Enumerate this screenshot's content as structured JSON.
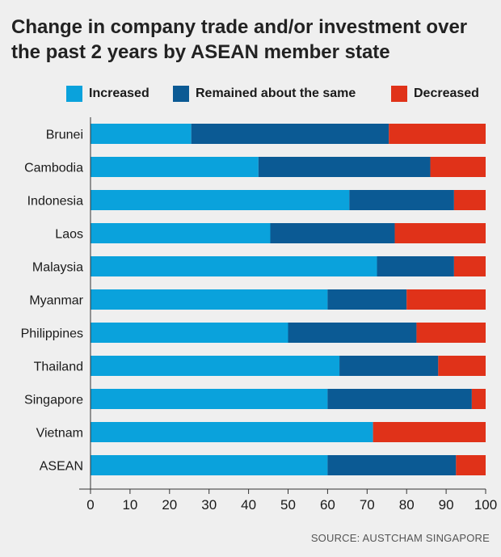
{
  "title": "Change in company trade and/or investment over the past 2 years by ASEAN member state",
  "source": "SOURCE: AUSTCHAM SINGAPORE",
  "chart_data": {
    "type": "bar",
    "orientation": "horizontal",
    "stacked": true,
    "categories": [
      "Brunei",
      "Cambodia",
      "Indonesia",
      "Laos",
      "Malaysia",
      "Myanmar",
      "Philippines",
      "Thailand",
      "Singapore",
      "Vietnam",
      "ASEAN"
    ],
    "series": [
      {
        "name": "Increased",
        "color": "#0aa2dc",
        "values": [
          25.5,
          42.5,
          65.5,
          45.5,
          72.5,
          60,
          50,
          63,
          60,
          71.5,
          60
        ]
      },
      {
        "name": "Remained about the same",
        "color": "#0b5a94",
        "values": [
          50,
          43.5,
          26.5,
          31.5,
          19.5,
          20,
          32.5,
          25,
          36.5,
          0,
          32.5
        ]
      },
      {
        "name": "Decreased",
        "color": "#e03219",
        "values": [
          24.5,
          14,
          8,
          23,
          8,
          20,
          17.5,
          12,
          3.5,
          28.5,
          7.5
        ]
      }
    ],
    "xlim": [
      0,
      100
    ],
    "xticks": [
      "0",
      "10",
      "20",
      "30",
      "40",
      "50",
      "60",
      "70",
      "80",
      "90",
      "100"
    ],
    "grid": false,
    "legend_position": "top"
  }
}
